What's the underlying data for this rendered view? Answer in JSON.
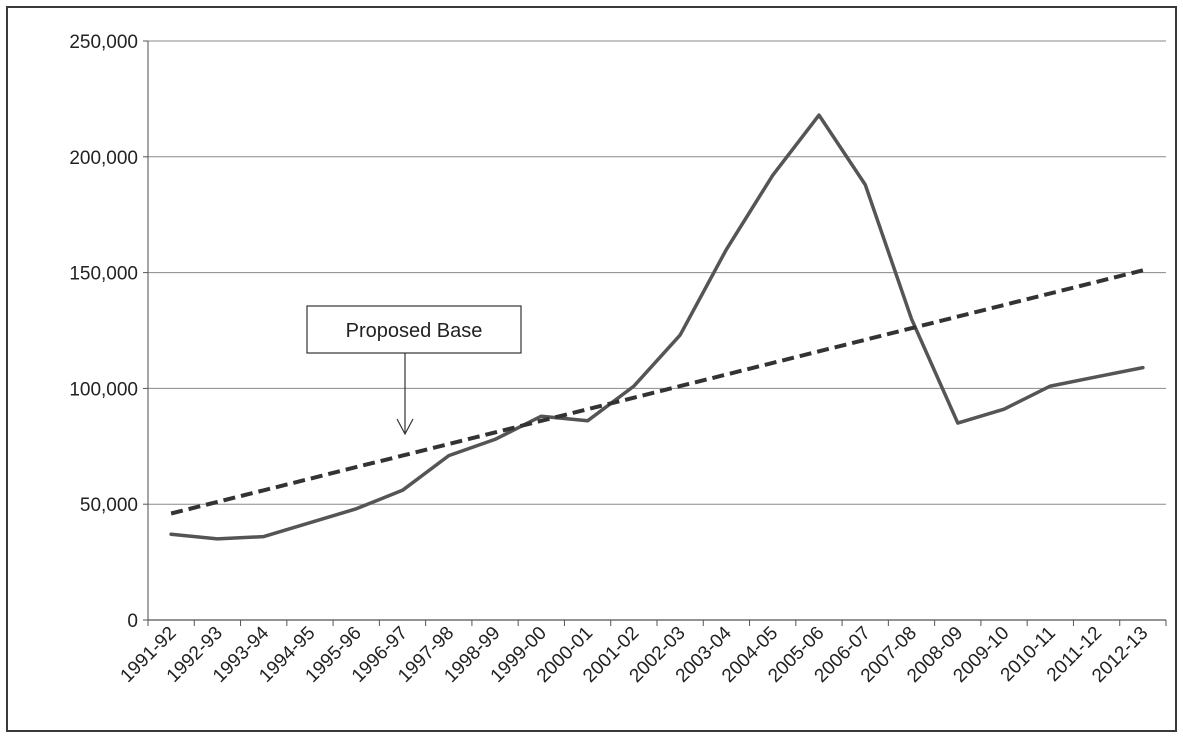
{
  "chart_data": {
    "type": "line",
    "title": "",
    "xlabel": "",
    "ylabel": "",
    "categories": [
      "1991-92",
      "1992-93",
      "1993-94",
      "1994-95",
      "1995-96",
      "1996-97",
      "1997-98",
      "1998-99",
      "1999-00",
      "2000-01",
      "2001-02",
      "2002-03",
      "2003-04",
      "2004-05",
      "2005-06",
      "2006-07",
      "2007-08",
      "2008-09",
      "2009-10",
      "2010-11",
      "2011-12",
      "2012-13"
    ],
    "ylim": [
      0,
      250000
    ],
    "yticks": [
      0,
      50000,
      100000,
      150000,
      200000,
      250000
    ],
    "ytick_labels": [
      "0",
      "50,000",
      "100,000",
      "150,000",
      "200,000",
      "250,000"
    ],
    "grid": true,
    "series": [
      {
        "style": "solid",
        "color": "#555555",
        "values": [
          37000,
          35000,
          36000,
          42000,
          48000,
          56000,
          71000,
          78000,
          88000,
          86000,
          101000,
          123000,
          160000,
          192000,
          218000,
          188000,
          130000,
          85000,
          91000,
          101000,
          105000,
          109000
        ]
      },
      {
        "style": "dashed",
        "color": "#333333",
        "values": [
          46000,
          51000,
          56000,
          61000,
          66000,
          71000,
          76000,
          81000,
          86000,
          91000,
          96000,
          101000,
          106000,
          111000,
          116000,
          121000,
          126000,
          131000,
          136000,
          141000,
          146000,
          151000
        ]
      }
    ],
    "annotation": {
      "text": "Proposed Base",
      "target_index": 5.5,
      "target_value": 80000
    }
  }
}
